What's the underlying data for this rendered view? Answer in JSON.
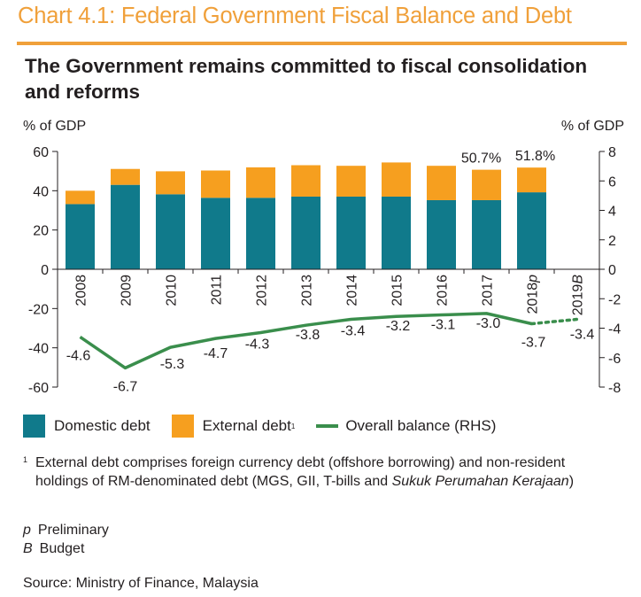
{
  "header": {
    "chart_number_title": "Chart 4.1: Federal Government Fiscal Balance and Debt",
    "headline": "The Government remains committed to fiscal consolidation and reforms"
  },
  "colors": {
    "domestic": "#107a8b",
    "external": "#f69f1f",
    "balance": "#3a8e4c",
    "accent": "#f0a03a",
    "text": "#231f20"
  },
  "chart_data": {
    "type": "bar",
    "stacked": true,
    "secondary_type": "line",
    "categories": [
      "2008",
      "2009",
      "2010",
      "2011",
      "2012",
      "2013",
      "2014",
      "2015",
      "2016",
      "2017",
      "2018p",
      "2019B"
    ],
    "series": [
      {
        "name": "Domestic debt",
        "axis": "left",
        "values": [
          33.2,
          43.0,
          38.2,
          36.4,
          36.4,
          37.0,
          37.0,
          37.0,
          35.2,
          35.2,
          39.2,
          null
        ]
      },
      {
        "name": "External debt",
        "axis": "left",
        "values": [
          6.8,
          8.1,
          11.7,
          13.9,
          15.5,
          16.0,
          15.7,
          17.4,
          17.5,
          15.5,
          12.6,
          null
        ]
      },
      {
        "name": "Overall balance (RHS)",
        "axis": "right",
        "type": "line",
        "values": [
          -4.6,
          -6.7,
          -5.3,
          -4.7,
          -4.3,
          -3.8,
          -3.4,
          -3.2,
          -3.1,
          -3.0,
          -3.7,
          -3.4
        ],
        "dashed_from_index": 10
      }
    ],
    "bar_total_labels": [
      {
        "category": "2017",
        "text": "50.7%"
      },
      {
        "category": "2018p",
        "text": "51.8%"
      }
    ],
    "line_labels": [
      "-4.6",
      "-6.7",
      "-5.3",
      "-4.7",
      "-4.3",
      "-3.8",
      "-3.4",
      "-3.2",
      "-3.1",
      "-3.0",
      "-3.7",
      "-3.4"
    ],
    "ylabel_left": "% of GDP",
    "ylabel_right": "% of GDP",
    "ylim_left": [
      -60,
      60
    ],
    "ylim_right": [
      -8,
      8
    ],
    "yticks_left": [
      "60",
      "40",
      "20",
      "0",
      "-20",
      "-40",
      "-60"
    ],
    "yticks_right": [
      "8",
      "6",
      "4",
      "2",
      "0",
      "-2",
      "-4",
      "-6",
      "-8"
    ],
    "grid": false,
    "legend_position": "bottom-left"
  },
  "legend": {
    "domestic": "Domestic debt",
    "external": "External debt",
    "external_sup": "1",
    "balance": "Overall balance (RHS)"
  },
  "footnote": {
    "mark": "1",
    "text_plain": "External debt comprises foreign currency debt (offshore borrowing) and non-resident holdings of RM-denominated debt (MGS, GII, T-bills and ",
    "text_italic": "Sukuk Perumahan Kerajaan",
    "text_end": ")"
  },
  "abbreviations": [
    {
      "symbol": "p",
      "meaning": "Preliminary"
    },
    {
      "symbol": "B",
      "meaning": "Budget"
    }
  ],
  "source": "Source: Ministry of Finance, Malaysia"
}
